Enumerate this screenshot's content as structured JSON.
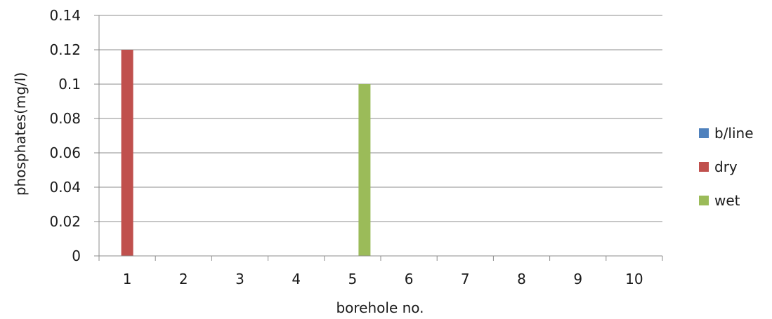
{
  "chart_data": {
    "type": "bar",
    "title": "",
    "xlabel": "borehole no.",
    "ylabel": "phosphates(mg/l)",
    "categories": [
      "1",
      "2",
      "3",
      "4",
      "5",
      "6",
      "7",
      "8",
      "9",
      "10"
    ],
    "ylim": [
      0,
      0.14
    ],
    "yticks": [
      "0",
      "0.02",
      "0.04",
      "0.06",
      "0.08",
      "0.1",
      "0.12",
      "0.14"
    ],
    "ytick_values": [
      0,
      0.02,
      0.04,
      0.06,
      0.08,
      0.1,
      0.12,
      0.14
    ],
    "grid": true,
    "legend_position": "right",
    "series": [
      {
        "name": "b/line",
        "color": "#4f81bd",
        "values": [
          0,
          0,
          0,
          0,
          0,
          0,
          0,
          0,
          0,
          0
        ]
      },
      {
        "name": "dry",
        "color": "#c0504d",
        "values": [
          0.12,
          0,
          0,
          0,
          0,
          0,
          0,
          0,
          0,
          0
        ]
      },
      {
        "name": "wet",
        "color": "#9bbb59",
        "values": [
          0,
          0,
          0,
          0,
          0.1,
          0,
          0,
          0,
          0,
          0
        ]
      }
    ]
  }
}
